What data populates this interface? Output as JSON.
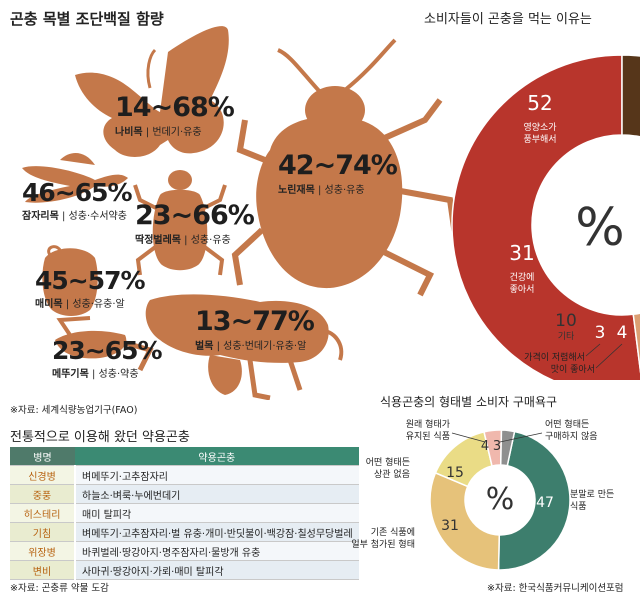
{
  "title_insects": "곤충 목별 조단백질 함량",
  "insects": [
    {
      "range": "14~68%",
      "name": "나비목",
      "stages": "번데기·유충"
    },
    {
      "range": "42~74%",
      "name": "노린재목",
      "stages": "성충·유충"
    },
    {
      "range": "46~65%",
      "name": "잠자리목",
      "stages": "성충·수서약충"
    },
    {
      "range": "23~66%",
      "name": "딱정벌레목",
      "stages": "성충·유충"
    },
    {
      "range": "45~57%",
      "name": "매미목",
      "stages": "성충·유충·알"
    },
    {
      "range": "13~77%",
      "name": "벌목",
      "stages": "성충·번데기·유충·알"
    },
    {
      "range": "23~65%",
      "name": "메뚜기목",
      "stages": "성충·약충"
    }
  ],
  "source_fao": "※자료: 세계식량농업기구(FAO)",
  "colors": {
    "insect": "#c4784a",
    "red": "#b8352c",
    "tan": "#dc9f73",
    "light_tan": "#f0cfb1",
    "brown": "#76502f",
    "dark_brown": "#56361a",
    "teal": "#3d7e6d",
    "sand": "#e6c27a",
    "yellow": "#eadc86",
    "pink": "#f0b8ad",
    "grey": "#8f8f8f"
  },
  "table": {
    "title": "전통적으로 이용해 왔던 약용곤충",
    "headers": [
      "병명",
      "약용곤충"
    ],
    "rows": [
      [
        "신경병",
        "벼메뚜기·고추잠자리"
      ],
      [
        "중풍",
        "하늘소·벼룩·누에번데기"
      ],
      [
        "히스테리",
        "매미 탈피각"
      ],
      [
        "기침",
        "벼메뚜기·고추잠자리·벌 유충·개미·반딧불이·백강잠·칠성무당벌레"
      ],
      [
        "위장병",
        "바퀴벌레·땅강아지·명주잠자리·물방개 유충"
      ],
      [
        "변비",
        "사마귀·땅강아지·가뢰·매미 탈피각"
      ]
    ],
    "source": "※자료: 곤충류 약물 도감"
  },
  "chart_reasons": {
    "title": "소비자들이 곤충을 먹는 이유는",
    "center": "%"
  },
  "chart_forms": {
    "title": "식용곤충의 형태별 소비자  구매욕구",
    "center": "%",
    "source": "※자료: 한국식품커뮤니케이션포럼"
  },
  "chart_data": [
    {
      "type": "pie",
      "title": "소비자들이 곤충을 먹는 이유는",
      "categories": [
        "영양소가 풍부해서",
        "건강에 좋아서",
        "기타",
        "가격이 저렴해서",
        "맛이 좋아서"
      ],
      "values": [
        52,
        31,
        10,
        3,
        4
      ]
    },
    {
      "type": "pie",
      "title": "식용곤충의 형태별 소비자  구매욕구",
      "categories": [
        "분말로 만든 식품",
        "기존 식품에 일부 첨가된 형태",
        "어떤 형태든 상관 없음",
        "원래 형태가 유지된 식품",
        "어떤 형태든 구매하지 않음"
      ],
      "values": [
        47,
        31,
        15,
        4,
        3
      ]
    }
  ]
}
